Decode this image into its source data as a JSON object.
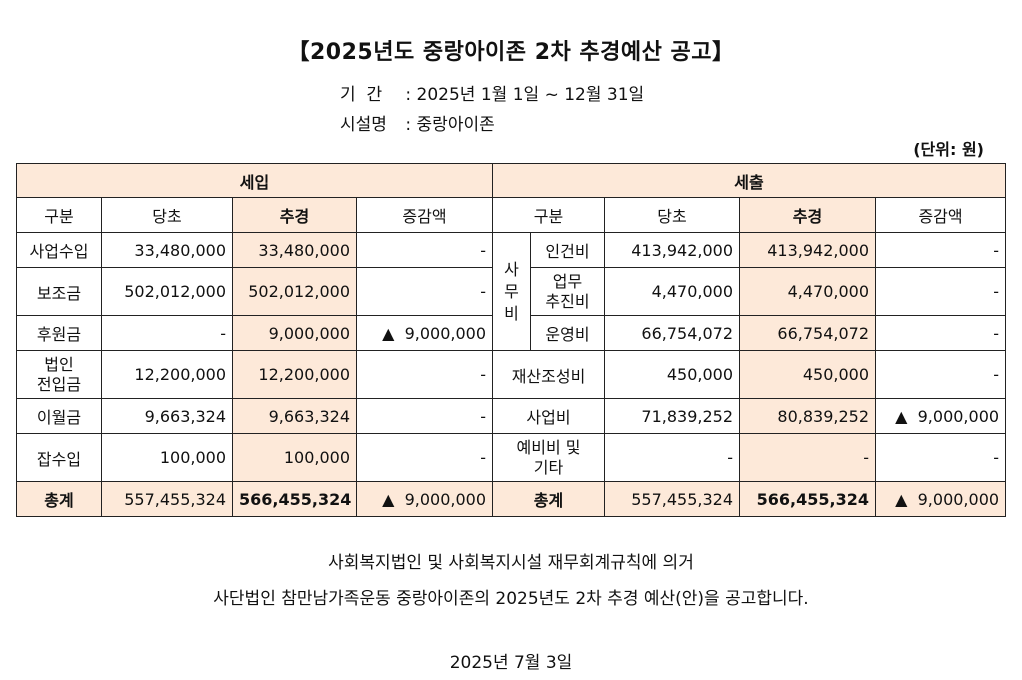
{
  "title": "【2025년도 중랑아이존 2차 추경예산 공고】",
  "meta": {
    "period_label": "기  간",
    "period_value": ": 2025년 1월 1일 ~ 12월 31일",
    "facility_label": "시설명",
    "facility_value": ": 중랑아이존"
  },
  "unit": "(단위: 원)",
  "income": {
    "header": "세입",
    "columns": [
      "구분",
      "당초",
      "추경",
      "증감액"
    ],
    "rows": [
      {
        "label": "사업수입",
        "original": "33,480,000",
        "revised": "33,480,000",
        "diff": "-"
      },
      {
        "label": "보조금",
        "original": "502,012,000",
        "revised": "502,012,000",
        "diff": "-"
      },
      {
        "label": "후원금",
        "original": "-",
        "revised": "9,000,000",
        "diff": "▲  9,000,000"
      },
      {
        "label": "법인\n전입금",
        "original": "12,200,000",
        "revised": "12,200,000",
        "diff": "-"
      },
      {
        "label": "이월금",
        "original": "9,663,324",
        "revised": "9,663,324",
        "diff": "-"
      },
      {
        "label": "잡수입",
        "original": "100,000",
        "revised": "100,000",
        "diff": "-"
      }
    ],
    "total": {
      "label": "총계",
      "original": "557,455,324",
      "revised": "566,455,324",
      "diff": "▲  9,000,000"
    }
  },
  "expense": {
    "header": "세출",
    "columns": [
      "구분",
      "당초",
      "추경",
      "증감액"
    ],
    "group_label": "사\n무\n비",
    "rows": [
      {
        "label": "인건비",
        "original": "413,942,000",
        "revised": "413,942,000",
        "diff": "-"
      },
      {
        "label": "업무\n추진비",
        "original": "4,470,000",
        "revised": "4,470,000",
        "diff": "-"
      },
      {
        "label": "운영비",
        "original": "66,754,072",
        "revised": "66,754,072",
        "diff": "-"
      },
      {
        "label": "재산조성비",
        "original": "450,000",
        "revised": "450,000",
        "diff": "-"
      },
      {
        "label": "사업비",
        "original": "71,839,252",
        "revised": "80,839,252",
        "diff": "▲  9,000,000"
      },
      {
        "label": "예비비 및\n기타",
        "original": "-",
        "revised": "-",
        "diff": "-"
      }
    ],
    "total": {
      "label": "총계",
      "original": "557,455,324",
      "revised": "566,455,324",
      "diff": "▲  9,000,000"
    }
  },
  "notice": {
    "line1": "사회복지법인 및 사회복지시설 재무회계규칙에 의거",
    "line2": "사단법인 참만남가족운동 중랑아이존의 2025년도 2차 추경 예산(안)을 공고합니다."
  },
  "date": "2025년 7월 3일"
}
